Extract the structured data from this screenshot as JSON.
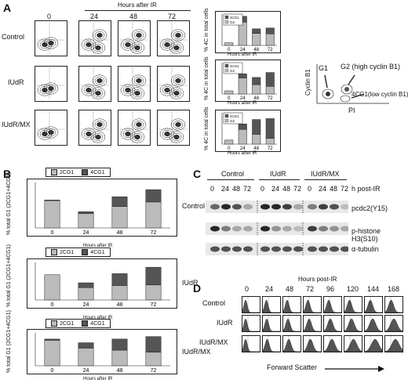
{
  "panelA": {
    "label": "A",
    "hours_header": "Hours after IR",
    "times": [
      "0",
      "24",
      "48",
      "72"
    ],
    "rows": [
      "Control",
      "IUdR",
      "IUdR/MX"
    ],
    "bar_ylabel": "% 4C in total cells",
    "bar_xlabel": "Hours after IR",
    "legend": [
      "4CG1",
      "G2"
    ],
    "ideogram": {
      "g1": "G1",
      "g2": "G2 (high cyclin B1)",
      "g4": "4CG1(low cyclin B1)",
      "ylabel": "Cyclin B1",
      "xlabel": "PI"
    }
  },
  "panelB": {
    "label": "B",
    "ylabel": "% total G1 (2CG1+4CG1)",
    "xlabel": "Hours after IR",
    "legend": [
      "2CG1",
      "4CG1"
    ],
    "rows": [
      "Control",
      "IUdR",
      "IUdR/MX"
    ]
  },
  "panelC": {
    "label": "C",
    "groups": [
      "Control",
      "IUdR",
      "IUdR/MX"
    ],
    "times": [
      "0",
      "24",
      "48",
      "72"
    ],
    "header_note": "h post-IR",
    "bands": [
      "pcdc2(Y15)",
      "p-histone H3(S10)",
      "α-tubulin"
    ]
  },
  "panelD": {
    "label": "D",
    "header": "Hours post-IR",
    "times": [
      "0",
      "24",
      "48",
      "72",
      "96",
      "120",
      "144",
      "168"
    ],
    "rows": [
      "Control",
      "IUdR",
      "IUdR/MX"
    ],
    "xlabel": "Forward Scatter"
  },
  "chart_data": [
    {
      "type": "bar",
      "name": "A-Control",
      "categories": [
        "0",
        "24",
        "48",
        "72"
      ],
      "series": [
        {
          "name": "G2",
          "values": [
            6,
            52,
            27,
            26
          ]
        },
        {
          "name": "4CG1",
          "values": [
            0,
            13,
            10,
            13
          ]
        }
      ],
      "ylim": [
        0,
        70
      ],
      "xlabel": "Hours after IR",
      "ylabel": "% 4C in total cells"
    },
    {
      "type": "bar",
      "name": "A-IUdR",
      "categories": [
        "0",
        "24",
        "48",
        "72"
      ],
      "series": [
        {
          "name": "G2",
          "values": [
            7,
            36,
            21,
            17
          ]
        },
        {
          "name": "4CG1",
          "values": [
            0,
            9,
            16,
            31
          ]
        }
      ],
      "ylim": [
        0,
        70
      ],
      "xlabel": "Hours after IR",
      "ylabel": "% 4C in total cells"
    },
    {
      "type": "bar",
      "name": "A-IUdR/MX",
      "categories": [
        "0",
        "24",
        "48",
        "72"
      ],
      "series": [
        {
          "name": "G2",
          "values": [
            9,
            33,
            22,
            13
          ]
        },
        {
          "name": "4CG1",
          "values": [
            0,
            12,
            33,
            44
          ]
        }
      ],
      "ylim": [
        0,
        70
      ],
      "xlabel": "Hours after IR",
      "ylabel": "% 4C in total cells"
    },
    {
      "type": "bar",
      "name": "B-Control",
      "categories": [
        "0",
        "24",
        "48",
        "72"
      ],
      "series": [
        {
          "name": "2CG1",
          "values": [
            42,
            22,
            33,
            40
          ]
        },
        {
          "name": "4CG1",
          "values": [
            1,
            3,
            15,
            19
          ]
        }
      ],
      "ylim": [
        0,
        70
      ],
      "xlabel": "Hours after IR",
      "ylabel": "% total G1 (2CG1+4CG1)"
    },
    {
      "type": "bar",
      "name": "B-IUdR",
      "categories": [
        "0",
        "24",
        "48",
        "72"
      ],
      "series": [
        {
          "name": "2CG1",
          "values": [
            47,
            23,
            27,
            28
          ]
        },
        {
          "name": "4CG1",
          "values": [
            0,
            9,
            22,
            33
          ]
        }
      ],
      "ylim": [
        0,
        70
      ],
      "xlabel": "Hours after IR",
      "ylabel": "% total G1 (2CG1+4CG1)"
    },
    {
      "type": "bar",
      "name": "B-IUdR/MX",
      "categories": [
        "0",
        "24",
        "48",
        "72"
      ],
      "series": [
        {
          "name": "2CG1",
          "values": [
            62,
            43,
            38,
            33
          ]
        },
        {
          "name": "4CG1",
          "values": [
            3,
            13,
            27,
            38
          ]
        }
      ],
      "ylim": [
        0,
        80
      ],
      "xlabel": "Hours after IR",
      "ylabel": "% total G1 (2CG1+4CG1)"
    }
  ]
}
